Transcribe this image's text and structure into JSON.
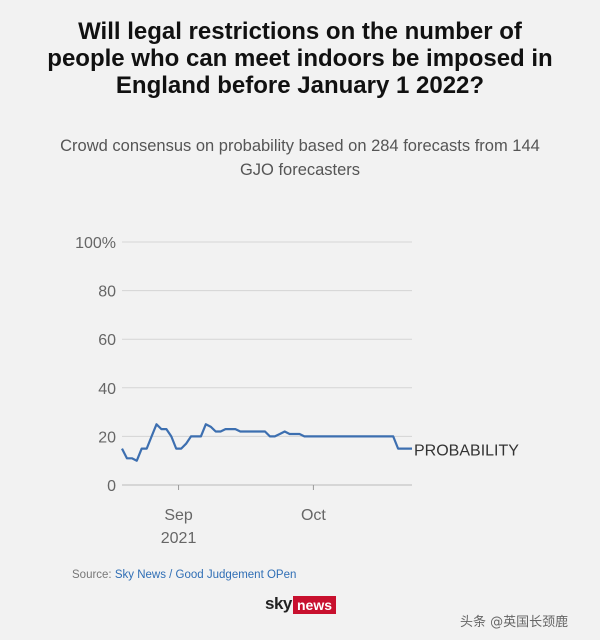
{
  "title": "Will legal restrictions on the number of people who can meet indoors be imposed in England before January 1 2022?",
  "subtitle": "Crowd consensus on probability based on 284 forecasts from 144 GJO forecasters",
  "source": {
    "prefix": "Source:",
    "text": "Sky News / Good Judgement OPen"
  },
  "logo": {
    "sky": "sky",
    "news": "news"
  },
  "watermark": "头条 @英国长颈鹿",
  "colors": {
    "line": "#3d6fb0",
    "grid": "#d5d5d5",
    "axis_text": "#666666"
  },
  "chart_data": {
    "type": "line",
    "title": "",
    "xlabel": "",
    "ylabel": "",
    "ylim": [
      0,
      100
    ],
    "xlim": [
      0,
      100
    ],
    "yticks": [
      {
        "value": 0,
        "label": "0"
      },
      {
        "value": 20,
        "label": "20"
      },
      {
        "value": 40,
        "label": "40"
      },
      {
        "value": 60,
        "label": "60"
      },
      {
        "value": 80,
        "label": "80"
      },
      {
        "value": 100,
        "label": "100%"
      }
    ],
    "xticks": [
      {
        "value": 19.5,
        "label": "Sep",
        "sublabel": "2021"
      },
      {
        "value": 66,
        "label": "Oct",
        "sublabel": ""
      }
    ],
    "grid": true,
    "series": [
      {
        "name": "PROBABILITY",
        "x": [
          0,
          1.7,
          3.4,
          5.1,
          6.8,
          8.5,
          10.2,
          11.9,
          13.6,
          15.3,
          17,
          18.7,
          20.4,
          22.1,
          23.8,
          25.5,
          27.2,
          28.9,
          30.6,
          32.3,
          34,
          35.7,
          37.4,
          39.1,
          40.8,
          42.5,
          44.2,
          45.9,
          47.6,
          49.3,
          51,
          52.7,
          54.4,
          56.1,
          57.8,
          59.5,
          61.2,
          62.9,
          64.6,
          66.3,
          68,
          69.7,
          71.4,
          73.1,
          74.8,
          76.5,
          78.2,
          79.9,
          81.6,
          83.3,
          85,
          86.7,
          88.4,
          90.1,
          91.8,
          93.5,
          95.2,
          96.9,
          98.6,
          100
        ],
        "values": [
          15,
          11,
          11,
          10,
          15,
          15,
          20,
          25,
          23,
          23,
          20,
          15,
          15,
          17,
          20,
          20,
          20,
          25,
          24,
          22,
          22,
          23,
          23,
          23,
          22,
          22,
          22,
          22,
          22,
          22,
          20,
          20,
          21,
          22,
          21,
          21,
          21,
          20,
          20,
          20,
          20,
          20,
          20,
          20,
          20,
          20,
          20,
          20,
          20,
          20,
          20,
          20,
          20,
          20,
          20,
          20,
          15,
          15,
          15,
          15
        ]
      }
    ]
  }
}
